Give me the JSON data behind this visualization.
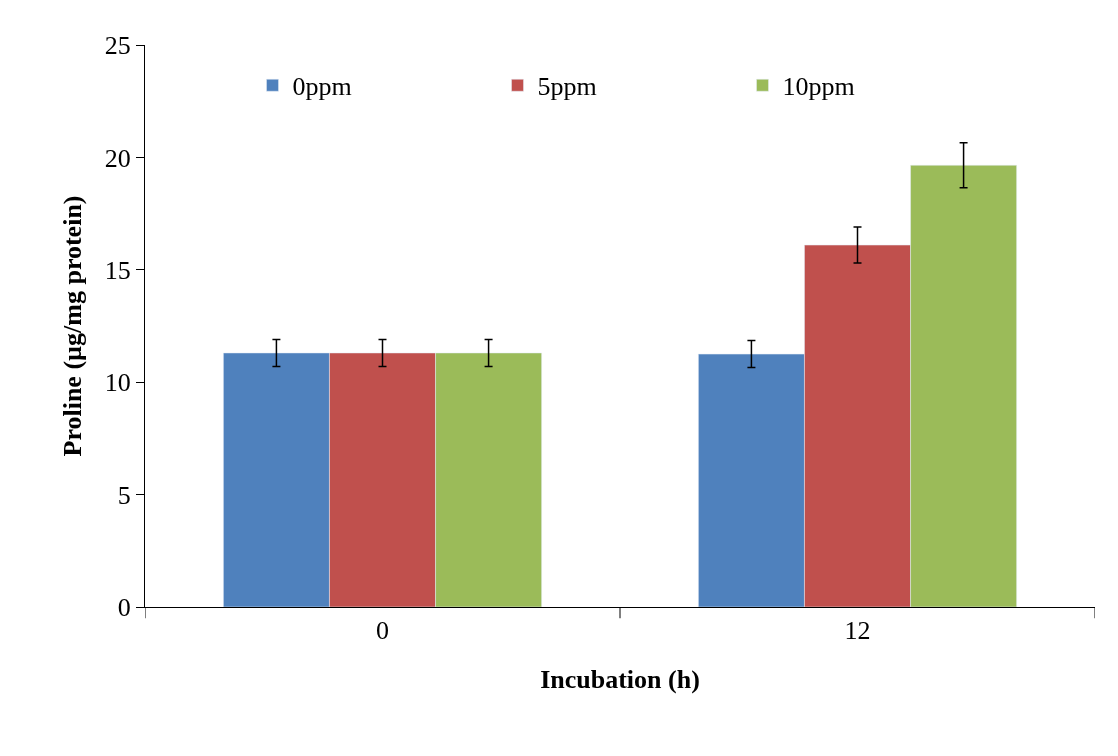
{
  "chart_data": {
    "type": "bar",
    "xlabel": "Incubation (h)",
    "ylabel": "Proline (µg/mg protein)",
    "categories": [
      "0",
      "12"
    ],
    "series": [
      {
        "name": "0ppm",
        "color": "#4f81bd",
        "values": [
          11.3,
          11.25
        ],
        "errors": [
          0.6,
          0.6
        ]
      },
      {
        "name": "5ppm",
        "color": "#c0504d",
        "values": [
          11.3,
          16.1
        ],
        "errors": [
          0.6,
          0.8
        ]
      },
      {
        "name": "10ppm",
        "color": "#9bbb59",
        "values": [
          11.3,
          19.65
        ],
        "errors": [
          0.6,
          1.0
        ]
      }
    ],
    "ylim": [
      0,
      25
    ],
    "yticks": [
      0,
      5,
      10,
      15,
      20,
      25
    ],
    "legend": "top"
  }
}
